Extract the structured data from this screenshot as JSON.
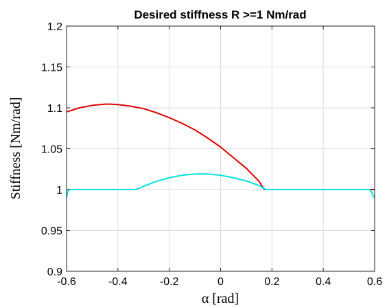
{
  "chart_data": {
    "type": "line",
    "title": "Desired stiffness R >=1 Nm/rad",
    "xlabel": "α [rad]",
    "ylabel": "Stiffness [Nm/rad]",
    "xlim": [
      -0.6,
      0.6
    ],
    "ylim": [
      0.9,
      1.2
    ],
    "xticks": [
      -0.6,
      -0.4,
      -0.2,
      0,
      0.2,
      0.4,
      0.6
    ],
    "xtick_labels": [
      "-0.6",
      "-0.4",
      "-0.2",
      "0",
      "0.2",
      "0.4",
      "0.6"
    ],
    "yticks": [
      0.9,
      0.95,
      1,
      1.05,
      1.1,
      1.15,
      1.2
    ],
    "ytick_labels": [
      "0.9",
      "0.95",
      "1",
      "1.05",
      "1.1",
      "1.15",
      "1.2"
    ],
    "grid": true,
    "series": [
      {
        "color": "#dd0000",
        "x": [
          -0.6,
          -0.55,
          -0.5,
          -0.45,
          -0.43,
          -0.4,
          -0.35,
          -0.3,
          -0.25,
          -0.2,
          -0.15,
          -0.1,
          -0.05,
          0,
          0.05,
          0.1,
          0.15,
          0.17,
          0.2,
          0.3,
          0.4,
          0.5,
          0.6
        ],
        "y": [
          1.095,
          1.1,
          1.103,
          1.1045,
          1.1045,
          1.104,
          1.102,
          1.099,
          1.094,
          1.088,
          1.081,
          1.073,
          1.063,
          1.052,
          1.039,
          1.026,
          1.01,
          1.0,
          1.0,
          1.0,
          1.0,
          1.0,
          1.0
        ]
      },
      {
        "color": "#00e0e0",
        "x": [
          -0.6,
          -0.595,
          -0.59,
          -0.5,
          -0.4,
          -0.33,
          -0.3,
          -0.25,
          -0.2,
          -0.15,
          -0.1,
          -0.07,
          -0.05,
          0,
          0.05,
          0.1,
          0.15,
          0.175,
          0.2,
          0.3,
          0.4,
          0.5,
          0.58,
          0.59,
          0.595,
          0.6
        ],
        "y": [
          0.99,
          0.998,
          1.0,
          1.0,
          1.0,
          1.0,
          1.004,
          1.01,
          1.0145,
          1.0175,
          1.019,
          1.0192,
          1.019,
          1.0175,
          1.0145,
          1.0105,
          1.005,
          1.0,
          1.0,
          1.0,
          1.0,
          1.0,
          1.0,
          0.996,
          0.992,
          0.99
        ]
      }
    ]
  }
}
